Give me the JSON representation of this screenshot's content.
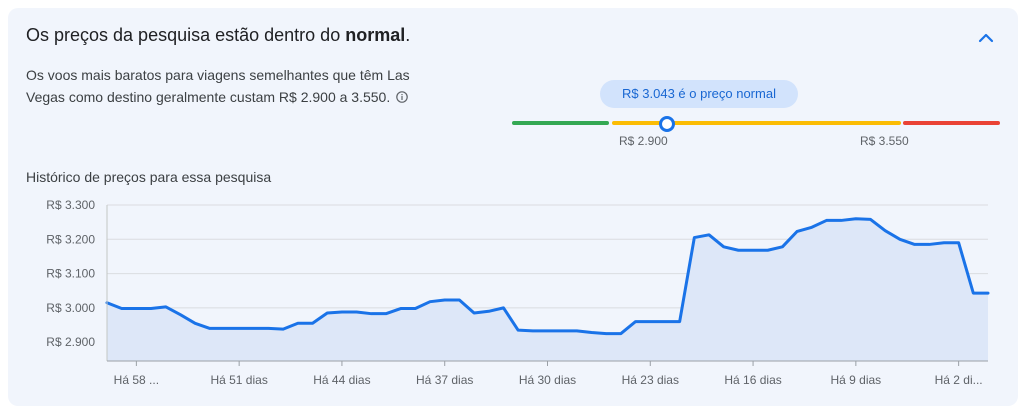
{
  "header": {
    "title_prefix": "Os preços da pesquisa estão dentro do ",
    "title_emphasis": "normal",
    "title_suffix": "."
  },
  "description": "Os voos mais baratos para viagens semelhantes que têm Las Vegas como destino geralmente custam R$ 2.900 a 3.550.",
  "price_range": {
    "current_label": "R$ 3.043 é o preço normal",
    "low_label": "R$ 2.900",
    "high_label": "R$ 3.550",
    "current_value": 3043,
    "typical_low": 2900,
    "typical_high": 3550,
    "colors": {
      "low": "#34a853",
      "typical": "#fbbc04",
      "high": "#ea4335",
      "marker": "#1a73e8"
    }
  },
  "history_title": "Histórico de preços para essa pesquisa",
  "icons": {
    "collapse": "chevron-up-icon",
    "info": "info-icon"
  },
  "chart_data": {
    "type": "area",
    "title": "Histórico de preços para essa pesquisa",
    "xlabel": "",
    "ylabel": "",
    "ylim": [
      2845,
      3300
    ],
    "yticks": [
      2900,
      3000,
      3100,
      3200,
      3300
    ],
    "ytick_labels": [
      "R$ 2.900",
      "R$ 3.000",
      "R$ 3.100",
      "R$ 3.200",
      "R$ 3.300"
    ],
    "xlim": [
      -60,
      0
    ],
    "xticks": [
      -58,
      -51,
      -44,
      -37,
      -30,
      -23,
      -16,
      -9,
      -2
    ],
    "xtick_labels": [
      "Há 58 ...",
      "Há 51 dias",
      "Há 44 dias",
      "Há 37 dias",
      "Há 30 dias",
      "Há 23 dias",
      "Há 16 dias",
      "Há 9 dias",
      "Há 2 di..."
    ],
    "grid": true,
    "series_color": "#1a73e8",
    "fill_color": "#dde7f8",
    "x": [
      -60,
      -59,
      -58,
      -57,
      -56,
      -55,
      -54,
      -53,
      -52,
      -51,
      -50,
      -49,
      -48,
      -47,
      -46,
      -45,
      -44,
      -43,
      -42,
      -41,
      -40,
      -39,
      -38,
      -37,
      -36,
      -35,
      -34,
      -33,
      -32,
      -31,
      -30,
      -29,
      -28,
      -27,
      -26,
      -25,
      -24,
      -23,
      -22,
      -21,
      -20,
      -19,
      -18,
      -17,
      -16,
      -15,
      -14,
      -13,
      -12,
      -11,
      -10,
      -9,
      -8,
      -7,
      -6,
      -5,
      -4,
      -3,
      -2,
      -1,
      0
    ],
    "values": [
      3015,
      2998,
      2998,
      2998,
      3003,
      2980,
      2955,
      2940,
      2940,
      2940,
      2940,
      2940,
      2938,
      2955,
      2955,
      2985,
      2988,
      2988,
      2983,
      2983,
      2998,
      2998,
      3018,
      3023,
      3023,
      2985,
      2990,
      3000,
      2935,
      2933,
      2933,
      2933,
      2933,
      2928,
      2925,
      2925,
      2960,
      2960,
      2960,
      2960,
      3205,
      3213,
      3178,
      3168,
      3168,
      3168,
      3178,
      3223,
      3235,
      3255,
      3255,
      3260,
      3258,
      3225,
      3200,
      3185,
      3185,
      3190,
      3190,
      3043,
      3043
    ]
  }
}
